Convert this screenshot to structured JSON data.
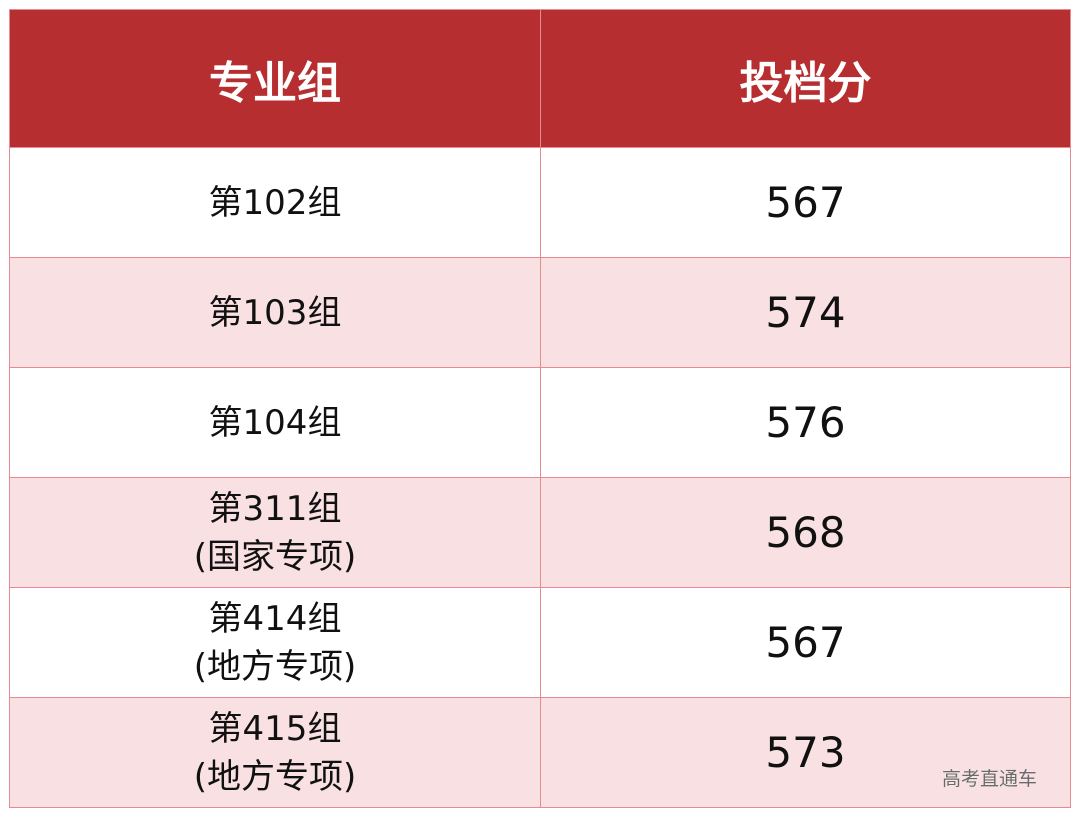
{
  "table": {
    "headers": [
      "专业组",
      "投档分"
    ],
    "rows": [
      {
        "group": "第102组",
        "note": "",
        "score": "567"
      },
      {
        "group": "第103组",
        "note": "",
        "score": "574"
      },
      {
        "group": "第104组",
        "note": "",
        "score": "576"
      },
      {
        "group": "第311组",
        "note": "(国家专项)",
        "score": "568"
      },
      {
        "group": "第414组",
        "note": "(地方专项)",
        "score": "567"
      },
      {
        "group": "第415组",
        "note": "(地方专项)",
        "score": "573"
      }
    ]
  },
  "watermark": "高考直通车",
  "colors": {
    "header_bg": "#b72e31",
    "alt_row_bg": "#f9e0e2",
    "border": "#e58c92"
  }
}
